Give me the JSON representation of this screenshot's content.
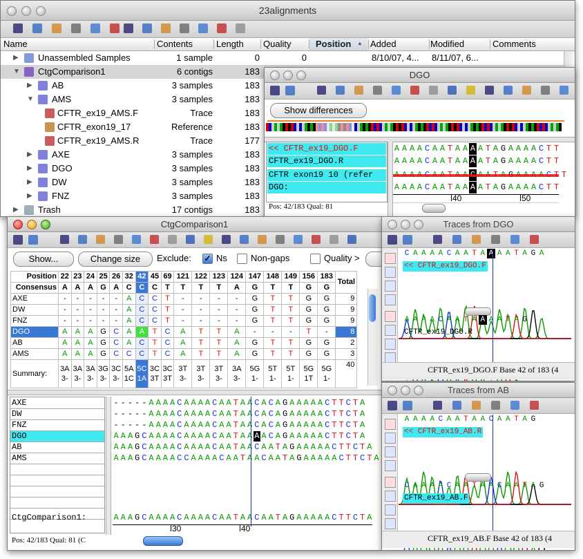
{
  "main_window": {
    "title": "23alignments",
    "columns": [
      "Name",
      "Contents",
      "Length",
      "Quality",
      "Position",
      "Added",
      "Modified",
      "Comments"
    ],
    "rows": [
      {
        "name": "Unassembled Samples",
        "contents": "1 sample",
        "length": 0,
        "quality": 0,
        "added": "8/10/07, 4...",
        "modified": "8/11/07, 6..."
      },
      {
        "name": "CtgComparison1",
        "contents": "6 contigs",
        "length": 183
      },
      {
        "name": "AB",
        "contents": "3 samples",
        "length": 183
      },
      {
        "name": "AMS",
        "contents": "3 samples",
        "length": 183
      },
      {
        "name": "CFTR_ex19_AMS.F",
        "contents": "Trace",
        "length": 183
      },
      {
        "name": "CFTR_exon19_17",
        "contents": "Reference",
        "length": 183
      },
      {
        "name": "CFTR_ex19_AMS.R",
        "contents": "Trace",
        "length": 177
      },
      {
        "name": "AXE",
        "contents": "3 samples",
        "length": 183
      },
      {
        "name": "DGO",
        "contents": "3 samples",
        "length": 183
      },
      {
        "name": "DW",
        "contents": "3 samples",
        "length": 183
      },
      {
        "name": "FNZ",
        "contents": "3 samples",
        "length": 183
      },
      {
        "name": "Trash",
        "contents": "17 contigs",
        "length": 183
      }
    ]
  },
  "dgo_window": {
    "title": "DGO",
    "button": "Show differences",
    "names": [
      "<< CFTR_ex19_DGO.F",
      "CFTR_ex19_DGO.R",
      "CFTR exon19 10 (refer",
      "DGO:"
    ],
    "sequences": [
      "AAAACAATAAAATAGAAAACTT",
      "AAAACAATAAAATAGAAAACTT",
      "AAAACAATAACAATAGAAAACTT",
      "AAAACAATAAAATAGAAAACTT"
    ],
    "ruler": [
      40,
      50
    ],
    "status": "Pos: 42/183  Qual: 81"
  },
  "ctg_window": {
    "title": "CtgComparison1",
    "buttons": [
      "Show...",
      "Change size"
    ],
    "exclude_label": "Exclude:",
    "checkboxes": [
      {
        "label": "Ns",
        "checked": true
      },
      {
        "label": "Non-gaps",
        "checked": false
      },
      {
        "label": "Quality >",
        "checked": false
      }
    ],
    "table": {
      "position_label": "Position",
      "consensus_label": "Consensus",
      "total_label": "Total",
      "positions": [
        22,
        23,
        24,
        25,
        26,
        32,
        42,
        45,
        69,
        121,
        122,
        123,
        124,
        147,
        148,
        149,
        156,
        183
      ],
      "consensus": [
        "A",
        "A",
        "A",
        "G",
        "A",
        "C",
        "C",
        "C",
        "T",
        "T",
        "T",
        "T",
        "A",
        "G",
        "T",
        "T",
        "G",
        "G"
      ],
      "rows": [
        {
          "name": "AXE",
          "bases": [
            "-",
            "-",
            "-",
            "-",
            "-",
            "A",
            "C",
            "C",
            "T",
            "-",
            "-",
            "-",
            "-",
            "G",
            "T",
            "T",
            "G",
            "G"
          ],
          "total": 9
        },
        {
          "name": "DW",
          "bases": [
            "-",
            "-",
            "-",
            "-",
            "-",
            "A",
            "C",
            "C",
            "T",
            "-",
            "-",
            "-",
            "-",
            "G",
            "T",
            "T",
            "G",
            "G"
          ],
          "total": 9
        },
        {
          "name": "FNZ",
          "bases": [
            "-",
            "-",
            "-",
            "-",
            "-",
            "A",
            "C",
            "C",
            "T",
            "-",
            "-",
            "-",
            "-",
            "G",
            "T",
            "T",
            "G",
            "G"
          ],
          "total": 9
        },
        {
          "name": "DGO",
          "bases": [
            "A",
            "A",
            "A",
            "G",
            "C",
            "A",
            "A",
            "T",
            "C",
            "A",
            "T",
            "T",
            "A",
            "-",
            "-",
            "-",
            "T",
            "-"
          ],
          "total": 8
        },
        {
          "name": "AB",
          "bases": [
            "A",
            "A",
            "A",
            "G",
            "C",
            "A",
            "C",
            "T",
            "C",
            "A",
            "T",
            "T",
            "A",
            "G",
            "T",
            "T",
            "G",
            "G"
          ],
          "total": 2
        },
        {
          "name": "AMS",
          "bases": [
            "A",
            "A",
            "A",
            "G",
            "C",
            "C",
            "C",
            "T",
            "C",
            "A",
            "T",
            "T",
            "A",
            "G",
            "T",
            "T",
            "G",
            "G"
          ],
          "total": 3
        }
      ],
      "summary_label": "Summary:",
      "summary": [
        [
          "3A",
          "3-"
        ],
        [
          "3A",
          "3-"
        ],
        [
          "3A",
          "3-"
        ],
        [
          "3G",
          "3-"
        ],
        [
          "3C",
          "3-"
        ],
        [
          "5A",
          "1C"
        ],
        [
          "5C",
          "1A"
        ],
        [
          "3C",
          "3T"
        ],
        [
          "3C",
          "3T"
        ],
        [
          "3T",
          "3-"
        ],
        [
          "3T",
          "3-"
        ],
        [
          "3T",
          "3-"
        ],
        [
          "3A",
          "3-"
        ],
        [
          "5G",
          "1-"
        ],
        [
          "5T",
          "1-"
        ],
        [
          "5T",
          "1-"
        ],
        [
          "5G",
          "1T"
        ],
        [
          "5G",
          "1-"
        ]
      ],
      "summary_total": 40
    },
    "alignment": {
      "names": [
        "AXE",
        "DW",
        "FNZ",
        "DGO",
        "AB",
        "AMS"
      ],
      "sequences": [
        "-----AAAACAAAACAATAACACAGAAAAACTTCTA",
        "-----AAAACAAAACAATAACACAGAAAAACTTCTA",
        "-----AAAACAAAACAATAACACAGAAAAACTTCTA",
        "AAAGCAAAACAAAACAATAAAACAGAAAAACTTCTA",
        "AAAGCAAAACAAAACAATAACAATAGAAAAACTTCTA",
        "AAAGCAAAACCAAAACAATAACAATAGAAAAACTTCTA"
      ],
      "consensus_name": "CtgComparison1:",
      "consensus": "AAAGCAAAACAAAACAATAACAATAGAAAAACTTCTA",
      "ruler": [
        30,
        40
      ]
    },
    "status": "Pos: 42/183  Qual: 81 (C"
  },
  "trace_windows": [
    {
      "title": "Traces from DGO",
      "reads": [
        {
          "sequence": "CAAAACAATAAAATAGA",
          "name": "<< CFTR_ex19_DGO.F"
        },
        {
          "sequence": "AAAACAATAAAATAG",
          "name": "CFTR_ex19_DGO.R"
        }
      ],
      "status": "CFTR_ex19_DGO.F Base 42 of 183 (4"
    },
    {
      "title": "Traces from AB",
      "reads": [
        {
          "sequence": "AAAACAATAACAATAG",
          "name": "<< CFTR_ex19_AB.R"
        },
        {
          "sequence": "CAAAACAATAACAATAG",
          "name": "CFTR_ex19_AB.F"
        }
      ],
      "status": "CFTR_ex19_AB.F Base 42 of 183 (4"
    }
  ]
}
